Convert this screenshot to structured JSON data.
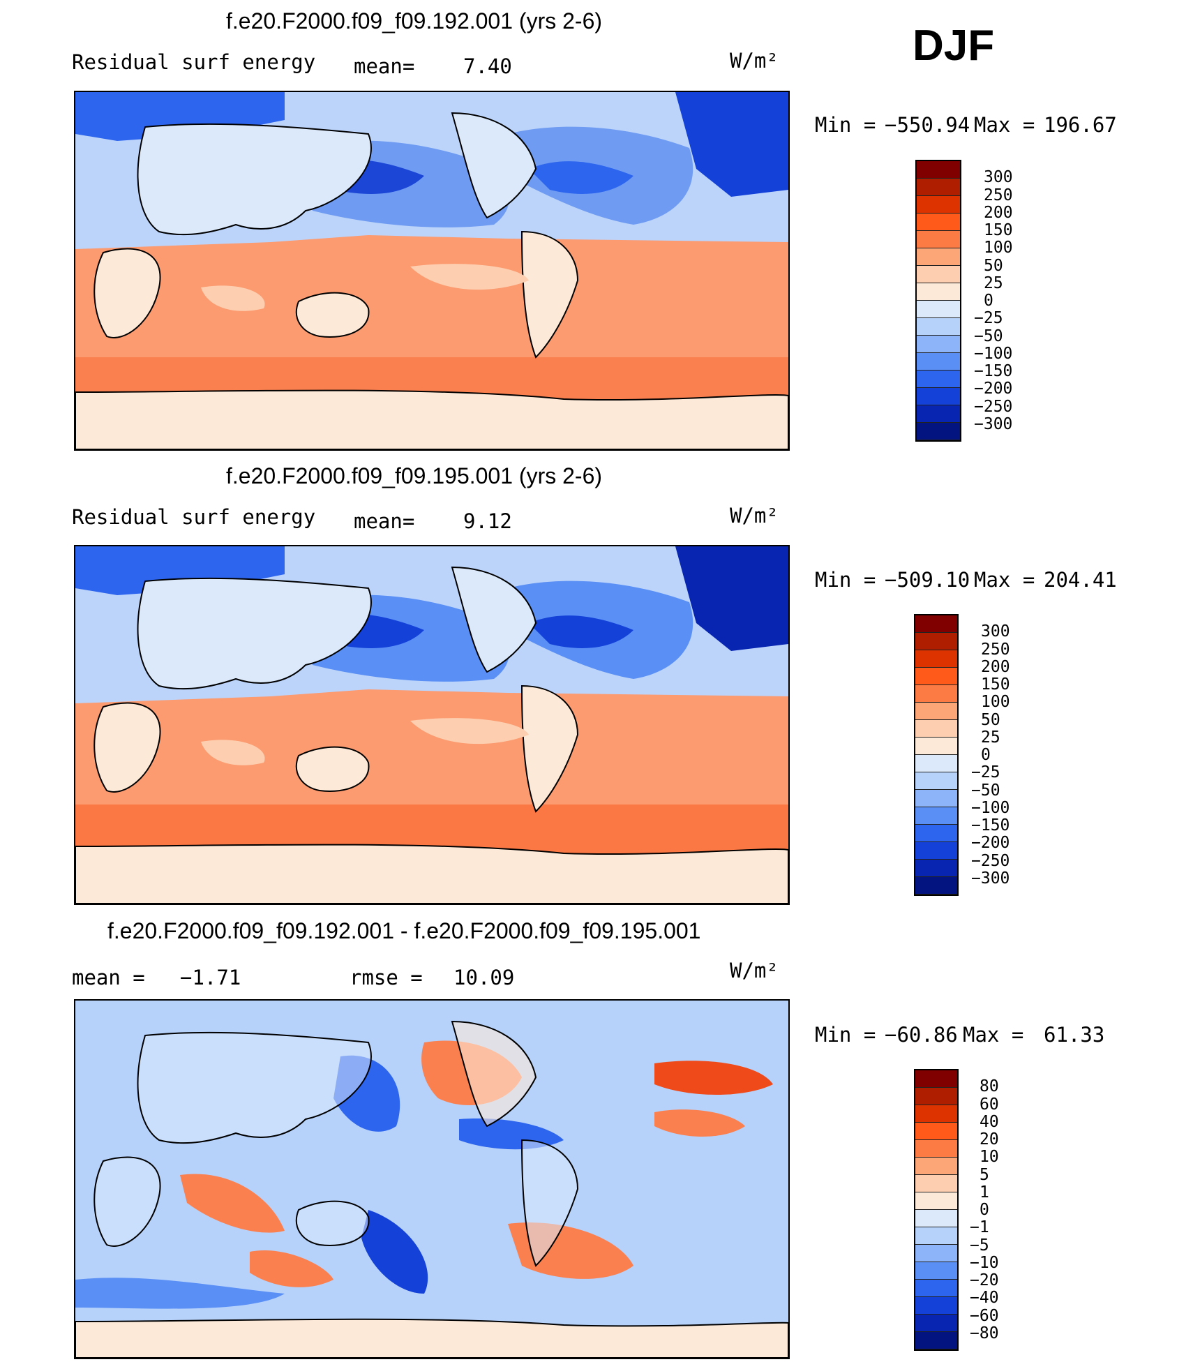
{
  "season": "DJF",
  "units": "W/m²",
  "panels": [
    {
      "title": "f.e20.F2000.f09_f09.192.001 (yrs 2-6)",
      "variable": "Residual surf energy",
      "mean_label": "mean=",
      "mean_value": "7.40",
      "min_label": "Min =",
      "min_value": "−550.94",
      "max_label": "Max =",
      "max_value": "196.67",
      "colorbar_labels": [
        "300",
        "250",
        "200",
        "150",
        "100",
        "50",
        "25",
        "0",
        "−25",
        "−50",
        "−100",
        "−150",
        "−200",
        "−250",
        "−300"
      ]
    },
    {
      "title": "f.e20.F2000.f09_f09.195.001 (yrs 2-6)",
      "variable": "Residual surf energy",
      "mean_label": "mean=",
      "mean_value": "9.12",
      "min_label": "Min =",
      "min_value": "−509.10",
      "max_label": "Max =",
      "max_value": "204.41",
      "colorbar_labels": [
        "300",
        "250",
        "200",
        "150",
        "100",
        "50",
        "25",
        "0",
        "−25",
        "−50",
        "−100",
        "−150",
        "−200",
        "−250",
        "−300"
      ]
    },
    {
      "title": "f.e20.F2000.f09_f09.192.001 - f.e20.F2000.f09_f09.195.001",
      "mean_label": "mean =",
      "mean_value": "−1.71",
      "rmse_label": "rmse =",
      "rmse_value": "10.09",
      "min_label": "Min =",
      "min_value": "−60.86",
      "max_label": "Max =",
      "max_value": "61.33",
      "colorbar_labels": [
        "80",
        "60",
        "40",
        "20",
        "10",
        "5",
        "1",
        "0",
        "−1",
        "−5",
        "−10",
        "−20",
        "−40",
        "−60",
        "−80"
      ]
    }
  ],
  "colors": {
    "colorbar": [
      "#800000",
      "#b01e00",
      "#dd3300",
      "#ff5a1a",
      "#fc7b44",
      "#fca577",
      "#fdcfb0",
      "#fde9d8",
      "#dbe9fb",
      "#b6d2fb",
      "#8db4f9",
      "#5a8ff5",
      "#2d65ee",
      "#1441d8",
      "#0725b0",
      "#031380"
    ],
    "ocean_warm": "#fb9a70",
    "ocean_cold": "#4a7ee8",
    "land": "#dbe9fb",
    "antarctica": "#fde9d8"
  }
}
